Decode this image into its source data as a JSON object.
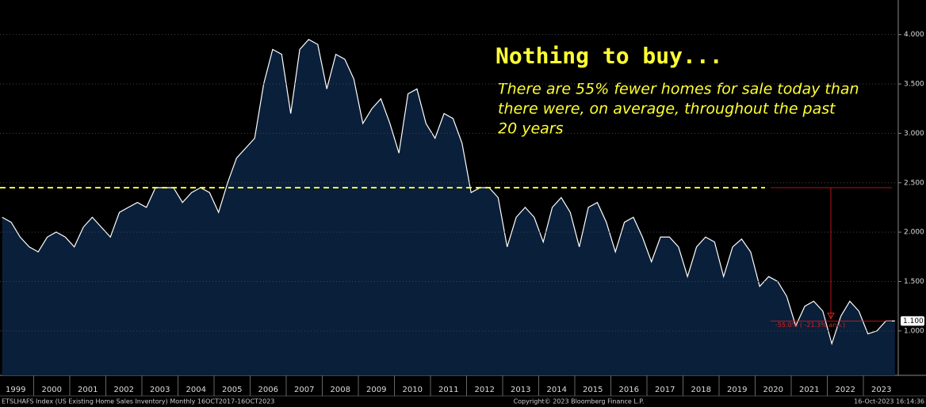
{
  "chart_data": {
    "type": "area",
    "title": "Nothing to buy...",
    "subtitle_lines": [
      "There are 55% fewer homes for sale today than",
      "there were, on average, throughout the past",
      "20 years"
    ],
    "categories": [
      "1999",
      null,
      null,
      null,
      "2000",
      null,
      null,
      null,
      "2001",
      null,
      null,
      null,
      "2002",
      null,
      null,
      null,
      "2003",
      null,
      null,
      null,
      "2004",
      null,
      null,
      null,
      "2005",
      null,
      null,
      null,
      "2006",
      null,
      null,
      null,
      "2007",
      null,
      null,
      null,
      "2008",
      null,
      null,
      null,
      "2009",
      null,
      null,
      null,
      "2010",
      null,
      null,
      null,
      "2011",
      null,
      null,
      null,
      "2012",
      null,
      null,
      null,
      "2013",
      null,
      null,
      null,
      "2014",
      null,
      null,
      null,
      "2015",
      null,
      null,
      null,
      "2016",
      null,
      null,
      null,
      "2017",
      null,
      null,
      null,
      "2018",
      null,
      null,
      null,
      "2019",
      null,
      null,
      null,
      "2020",
      null,
      null,
      null,
      "2021",
      null,
      null,
      null,
      "2022",
      null,
      null,
      null,
      "2023",
      null,
      null,
      null
    ],
    "series": [
      {
        "name": "ETSLHAFS Index (US Existing Home Sales Inventory)",
        "color": "#ffffff",
        "fill": "#0a1f3a",
        "values": [
          2.15,
          2.1,
          1.95,
          1.85,
          1.8,
          1.95,
          2.0,
          1.95,
          1.85,
          2.05,
          2.15,
          2.05,
          1.95,
          2.2,
          2.25,
          2.3,
          2.25,
          2.45,
          2.45,
          2.45,
          2.3,
          2.4,
          2.45,
          2.4,
          2.2,
          2.5,
          2.75,
          2.85,
          2.95,
          3.5,
          3.85,
          3.8,
          3.2,
          3.85,
          3.95,
          3.9,
          3.45,
          3.8,
          3.75,
          3.55,
          3.1,
          3.25,
          3.35,
          3.1,
          2.8,
          3.4,
          3.45,
          3.1,
          2.95,
          3.2,
          3.15,
          2.9,
          2.4,
          2.45,
          2.45,
          2.35,
          1.85,
          2.15,
          2.25,
          2.15,
          1.9,
          2.25,
          2.35,
          2.2,
          1.85,
          2.25,
          2.3,
          2.1,
          1.8,
          2.1,
          2.15,
          1.95,
          1.7,
          1.95,
          1.95,
          1.85,
          1.55,
          1.85,
          1.95,
          1.9,
          1.55,
          1.85,
          1.93,
          1.8,
          1.45,
          1.55,
          1.5,
          1.35,
          1.05,
          1.25,
          1.3,
          1.2,
          0.87,
          1.15,
          1.3,
          1.2,
          0.97,
          1.0,
          1.1,
          1.1
        ]
      }
    ],
    "ylim": [
      0.55,
      4.35
    ],
    "yticks": [
      {
        "value": 1.0,
        "label": "1.000"
      },
      {
        "value": 1.5,
        "label": "1.500"
      },
      {
        "value": 2.0,
        "label": "2.000"
      },
      {
        "value": 2.5,
        "label": "2.500"
      },
      {
        "value": 3.0,
        "label": "3.000"
      },
      {
        "value": 3.5,
        "label": "3.500"
      },
      {
        "value": 4.0,
        "label": "4.000"
      }
    ],
    "average": 2.45,
    "average_color": "#ffff33",
    "last_value": {
      "value": 1.1,
      "label": "1.100"
    },
    "change_annotation": "-55.0% ( -21.3% ann.)",
    "annotation_color": "#e0201c",
    "footer_left": "ETSLHAFS Index (US Existing Home Sales Inventory)  Monthly 16OCT2017-16OCT2023",
    "footer_center": "Copyright© 2023 Bloomberg Finance L.P.",
    "footer_right": "16-Oct-2023 16:14:36"
  }
}
